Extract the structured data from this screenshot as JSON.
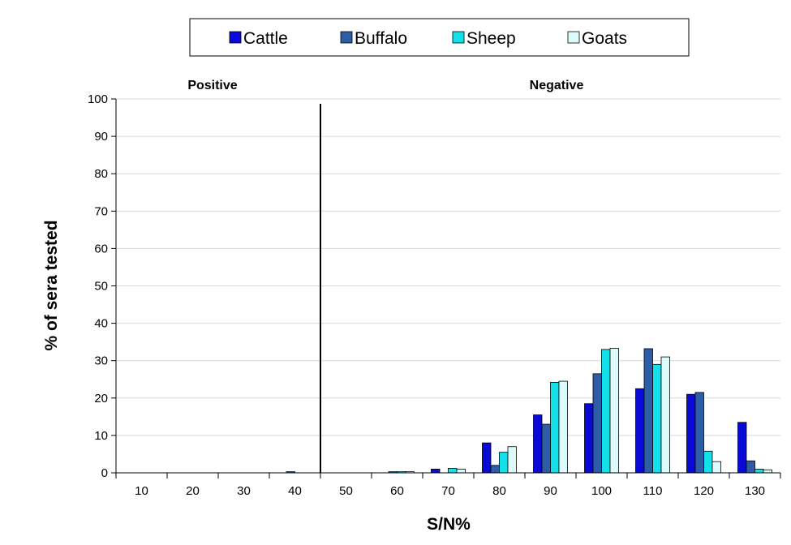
{
  "chart_data": {
    "type": "bar",
    "title": "",
    "xlabel": "S/N%",
    "ylabel": "% of sera tested",
    "ylim": [
      0,
      100
    ],
    "yticks": [
      0,
      10,
      20,
      30,
      40,
      50,
      60,
      70,
      80,
      90,
      100
    ],
    "grid": true,
    "legend_position": "top-center",
    "categories": [
      "10",
      "20",
      "30",
      "40",
      "50",
      "60",
      "70",
      "80",
      "90",
      "100",
      "110",
      "120",
      "130"
    ],
    "cutoff": {
      "between": [
        "40",
        "50"
      ],
      "left_label": "Positive",
      "right_label": "Negative"
    },
    "series": [
      {
        "name": "Cattle",
        "color": "#0a0ad6",
        "values": [
          0,
          0,
          0,
          0,
          0,
          0,
          1,
          8,
          15.5,
          18.5,
          22.5,
          21,
          13.5
        ]
      },
      {
        "name": "Buffalo",
        "color": "#2e5da8",
        "values": [
          0,
          0,
          0,
          0.3,
          0,
          0.3,
          0,
          2,
          13,
          26.5,
          33.2,
          21.5,
          3.2
        ]
      },
      {
        "name": "Sheep",
        "color": "#14e0ea",
        "values": [
          0,
          0,
          0,
          0,
          0,
          0.3,
          1.2,
          5.5,
          24.2,
          33,
          29,
          5.8,
          1
        ]
      },
      {
        "name": "Goats",
        "color": "#ddfbfb",
        "values": [
          0,
          0,
          0,
          0,
          0,
          0.3,
          1,
          7,
          24.5,
          33.3,
          31,
          3,
          0.8
        ]
      }
    ]
  }
}
